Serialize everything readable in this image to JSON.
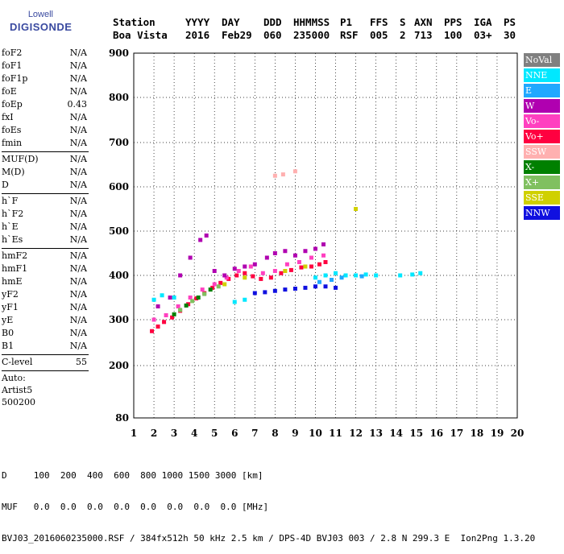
{
  "logo": {
    "line1": "Lowell",
    "line2": "DIGISONDE"
  },
  "header": {
    "columns": [
      {
        "label": "Station",
        "value": "Boa Vista"
      },
      {
        "label": "YYYY",
        "value": "2016"
      },
      {
        "label": "DAY",
        "value": "Feb29"
      },
      {
        "label": "DDD",
        "value": "060"
      },
      {
        "label": "HHMMSS",
        "value": "235000"
      },
      {
        "label": "P1",
        "value": "RSF"
      },
      {
        "label": "FFS",
        "value": "005"
      },
      {
        "label": "S",
        "value": "2"
      },
      {
        "label": "AXN",
        "value": "713"
      },
      {
        "label": "PPS",
        "value": "100"
      },
      {
        "label": "IGA",
        "value": "03+"
      },
      {
        "label": "PS",
        "value": "30"
      }
    ]
  },
  "params": {
    "group1": [
      {
        "name": "foF2",
        "value": "N/A"
      },
      {
        "name": "foF1",
        "value": "N/A"
      },
      {
        "name": "foF1p",
        "value": "N/A"
      },
      {
        "name": "foE",
        "value": "N/A"
      },
      {
        "name": "foEp",
        "value": "0.43"
      },
      {
        "name": "fxI",
        "value": "N/A"
      },
      {
        "name": "foEs",
        "value": "N/A"
      },
      {
        "name": "fmin",
        "value": "N/A"
      }
    ],
    "group2": [
      {
        "name": "MUF(D)",
        "value": "N/A"
      },
      {
        "name": "M(D)",
        "value": "N/A"
      },
      {
        "name": "D",
        "value": "N/A"
      }
    ],
    "group3": [
      {
        "name": "h`F",
        "value": "N/A"
      },
      {
        "name": "h`F2",
        "value": "N/A"
      },
      {
        "name": "h`E",
        "value": "N/A"
      },
      {
        "name": "h`Es",
        "value": "N/A"
      }
    ],
    "group4": [
      {
        "name": "hmF2",
        "value": "N/A"
      },
      {
        "name": "hmF1",
        "value": "N/A"
      },
      {
        "name": "hmE",
        "value": "N/A"
      },
      {
        "name": "yF2",
        "value": "N/A"
      },
      {
        "name": "yF1",
        "value": "N/A"
      },
      {
        "name": "yE",
        "value": "N/A"
      },
      {
        "name": "B0",
        "value": "N/A"
      },
      {
        "name": "B1",
        "value": "N/A"
      }
    ],
    "clevel": {
      "name": "C-level",
      "value": "55"
    },
    "auto": [
      "Auto:",
      "Artist5",
      "500200"
    ]
  },
  "legend": [
    {
      "label": "NoVal",
      "color": "#808080"
    },
    {
      "label": "NNE",
      "color": "#00e8ff"
    },
    {
      "label": "E",
      "color": "#20a8ff"
    },
    {
      "label": "W",
      "color": "#b000b0"
    },
    {
      "label": "Vo-",
      "color": "#ff40c0"
    },
    {
      "label": "Vo+",
      "color": "#ff0040"
    },
    {
      "label": "SSW",
      "color": "#ffb0b0"
    },
    {
      "label": "X-",
      "color": "#008000"
    },
    {
      "label": "X+",
      "color": "#80c060"
    },
    {
      "label": "SSE",
      "color": "#d0d000"
    },
    {
      "label": "NNW",
      "color": "#1010e0"
    }
  ],
  "footer": {
    "line1": "D     100  200  400  600  800 1000 1500 3000 [km]",
    "line2": "MUF   0.0  0.0  0.0  0.0  0.0  0.0  0.0  0.0 [MHz]",
    "line3": "BVJ03_2016060235000.RSF / 384fx512h 50 kHz 2.5 km / DPS-4D BVJ03 003 / 2.8 N 299.3 E  Ion2Png 1.3.20"
  },
  "chart_data": {
    "type": "scatter",
    "title": "",
    "xlabel": "",
    "ylabel": "",
    "xlim": [
      1,
      20
    ],
    "ylim": [
      80,
      900
    ],
    "xticks": [
      1,
      2,
      3,
      4,
      5,
      6,
      7,
      8,
      9,
      10,
      11,
      12,
      13,
      14,
      15,
      16,
      17,
      18,
      19,
      20
    ],
    "yticks": [
      80,
      200,
      300,
      400,
      500,
      600,
      700,
      800,
      900
    ],
    "series": [
      {
        "name": "Vo+",
        "color": "#ff0040",
        "points": [
          [
            1.9,
            275
          ],
          [
            2.2,
            285
          ],
          [
            2.5,
            295
          ],
          [
            2.9,
            305
          ],
          [
            3.3,
            320
          ],
          [
            3.7,
            335
          ],
          [
            4.1,
            348
          ],
          [
            4.5,
            360
          ],
          [
            4.9,
            372
          ],
          [
            5.3,
            383
          ],
          [
            5.7,
            392
          ],
          [
            6.1,
            400
          ],
          [
            6.5,
            405
          ],
          [
            6.9,
            398
          ],
          [
            7.3,
            392
          ],
          [
            7.8,
            395
          ],
          [
            8.3,
            405
          ],
          [
            8.8,
            412
          ],
          [
            9.3,
            418
          ],
          [
            9.8,
            420
          ],
          [
            10.2,
            425
          ],
          [
            10.5,
            430
          ]
        ]
      },
      {
        "name": "Vo-",
        "color": "#ff40c0",
        "points": [
          [
            2.0,
            300
          ],
          [
            2.6,
            310
          ],
          [
            3.2,
            330
          ],
          [
            3.8,
            350
          ],
          [
            4.4,
            368
          ],
          [
            5.0,
            380
          ],
          [
            5.6,
            395
          ],
          [
            6.2,
            410
          ],
          [
            6.8,
            420
          ],
          [
            7.4,
            405
          ],
          [
            8.0,
            410
          ],
          [
            8.6,
            425
          ],
          [
            9.2,
            430
          ],
          [
            9.8,
            440
          ],
          [
            10.4,
            445
          ]
        ]
      },
      {
        "name": "W",
        "color": "#b000b0",
        "points": [
          [
            2.2,
            330
          ],
          [
            2.8,
            350
          ],
          [
            3.3,
            400
          ],
          [
            3.8,
            440
          ],
          [
            4.3,
            480
          ],
          [
            4.6,
            490
          ],
          [
            5.0,
            410
          ],
          [
            5.5,
            400
          ],
          [
            6.0,
            415
          ],
          [
            6.5,
            420
          ],
          [
            7.0,
            425
          ],
          [
            7.6,
            440
          ],
          [
            8.0,
            450
          ],
          [
            8.5,
            455
          ],
          [
            9.0,
            445
          ],
          [
            9.5,
            455
          ],
          [
            10.0,
            460
          ],
          [
            10.4,
            470
          ]
        ]
      },
      {
        "name": "NNW",
        "color": "#1010e0",
        "points": [
          [
            7.0,
            360
          ],
          [
            7.5,
            362
          ],
          [
            8.0,
            365
          ],
          [
            8.5,
            368
          ],
          [
            9.0,
            370
          ],
          [
            9.5,
            372
          ],
          [
            10.0,
            375
          ],
          [
            10.5,
            375
          ],
          [
            11.0,
            372
          ]
        ]
      },
      {
        "name": "NNE",
        "color": "#00e8ff",
        "points": [
          [
            2.0,
            345
          ],
          [
            2.4,
            355
          ],
          [
            3.0,
            350
          ],
          [
            6.0,
            340
          ],
          [
            6.5,
            345
          ],
          [
            10.0,
            395
          ],
          [
            10.5,
            400
          ],
          [
            11.0,
            405
          ],
          [
            11.5,
            400
          ],
          [
            12.0,
            400
          ],
          [
            12.5,
            402
          ],
          [
            13.0,
            400
          ],
          [
            14.2,
            400
          ],
          [
            14.8,
            402
          ],
          [
            15.2,
            405
          ]
        ]
      },
      {
        "name": "E",
        "color": "#20a8ff",
        "points": [
          [
            10.2,
            385
          ],
          [
            10.8,
            390
          ],
          [
            11.3,
            395
          ],
          [
            12.3,
            398
          ]
        ]
      },
      {
        "name": "SSW",
        "color": "#ffb0b0",
        "points": [
          [
            8.0,
            625
          ],
          [
            8.4,
            628
          ],
          [
            9.0,
            635
          ]
        ]
      },
      {
        "name": "X-",
        "color": "#008000",
        "points": [
          [
            3.0,
            312
          ],
          [
            3.6,
            332
          ],
          [
            4.2,
            350
          ],
          [
            4.8,
            368
          ]
        ]
      },
      {
        "name": "X+",
        "color": "#80c060",
        "points": [
          [
            3.3,
            322
          ],
          [
            3.9,
            342
          ],
          [
            4.5,
            358
          ],
          [
            5.2,
            375
          ]
        ]
      },
      {
        "name": "SSE",
        "color": "#d0d000",
        "points": [
          [
            5.5,
            380
          ],
          [
            6.5,
            395
          ],
          [
            8.5,
            410
          ],
          [
            9.5,
            420
          ],
          [
            12.0,
            550
          ]
        ]
      }
    ]
  }
}
